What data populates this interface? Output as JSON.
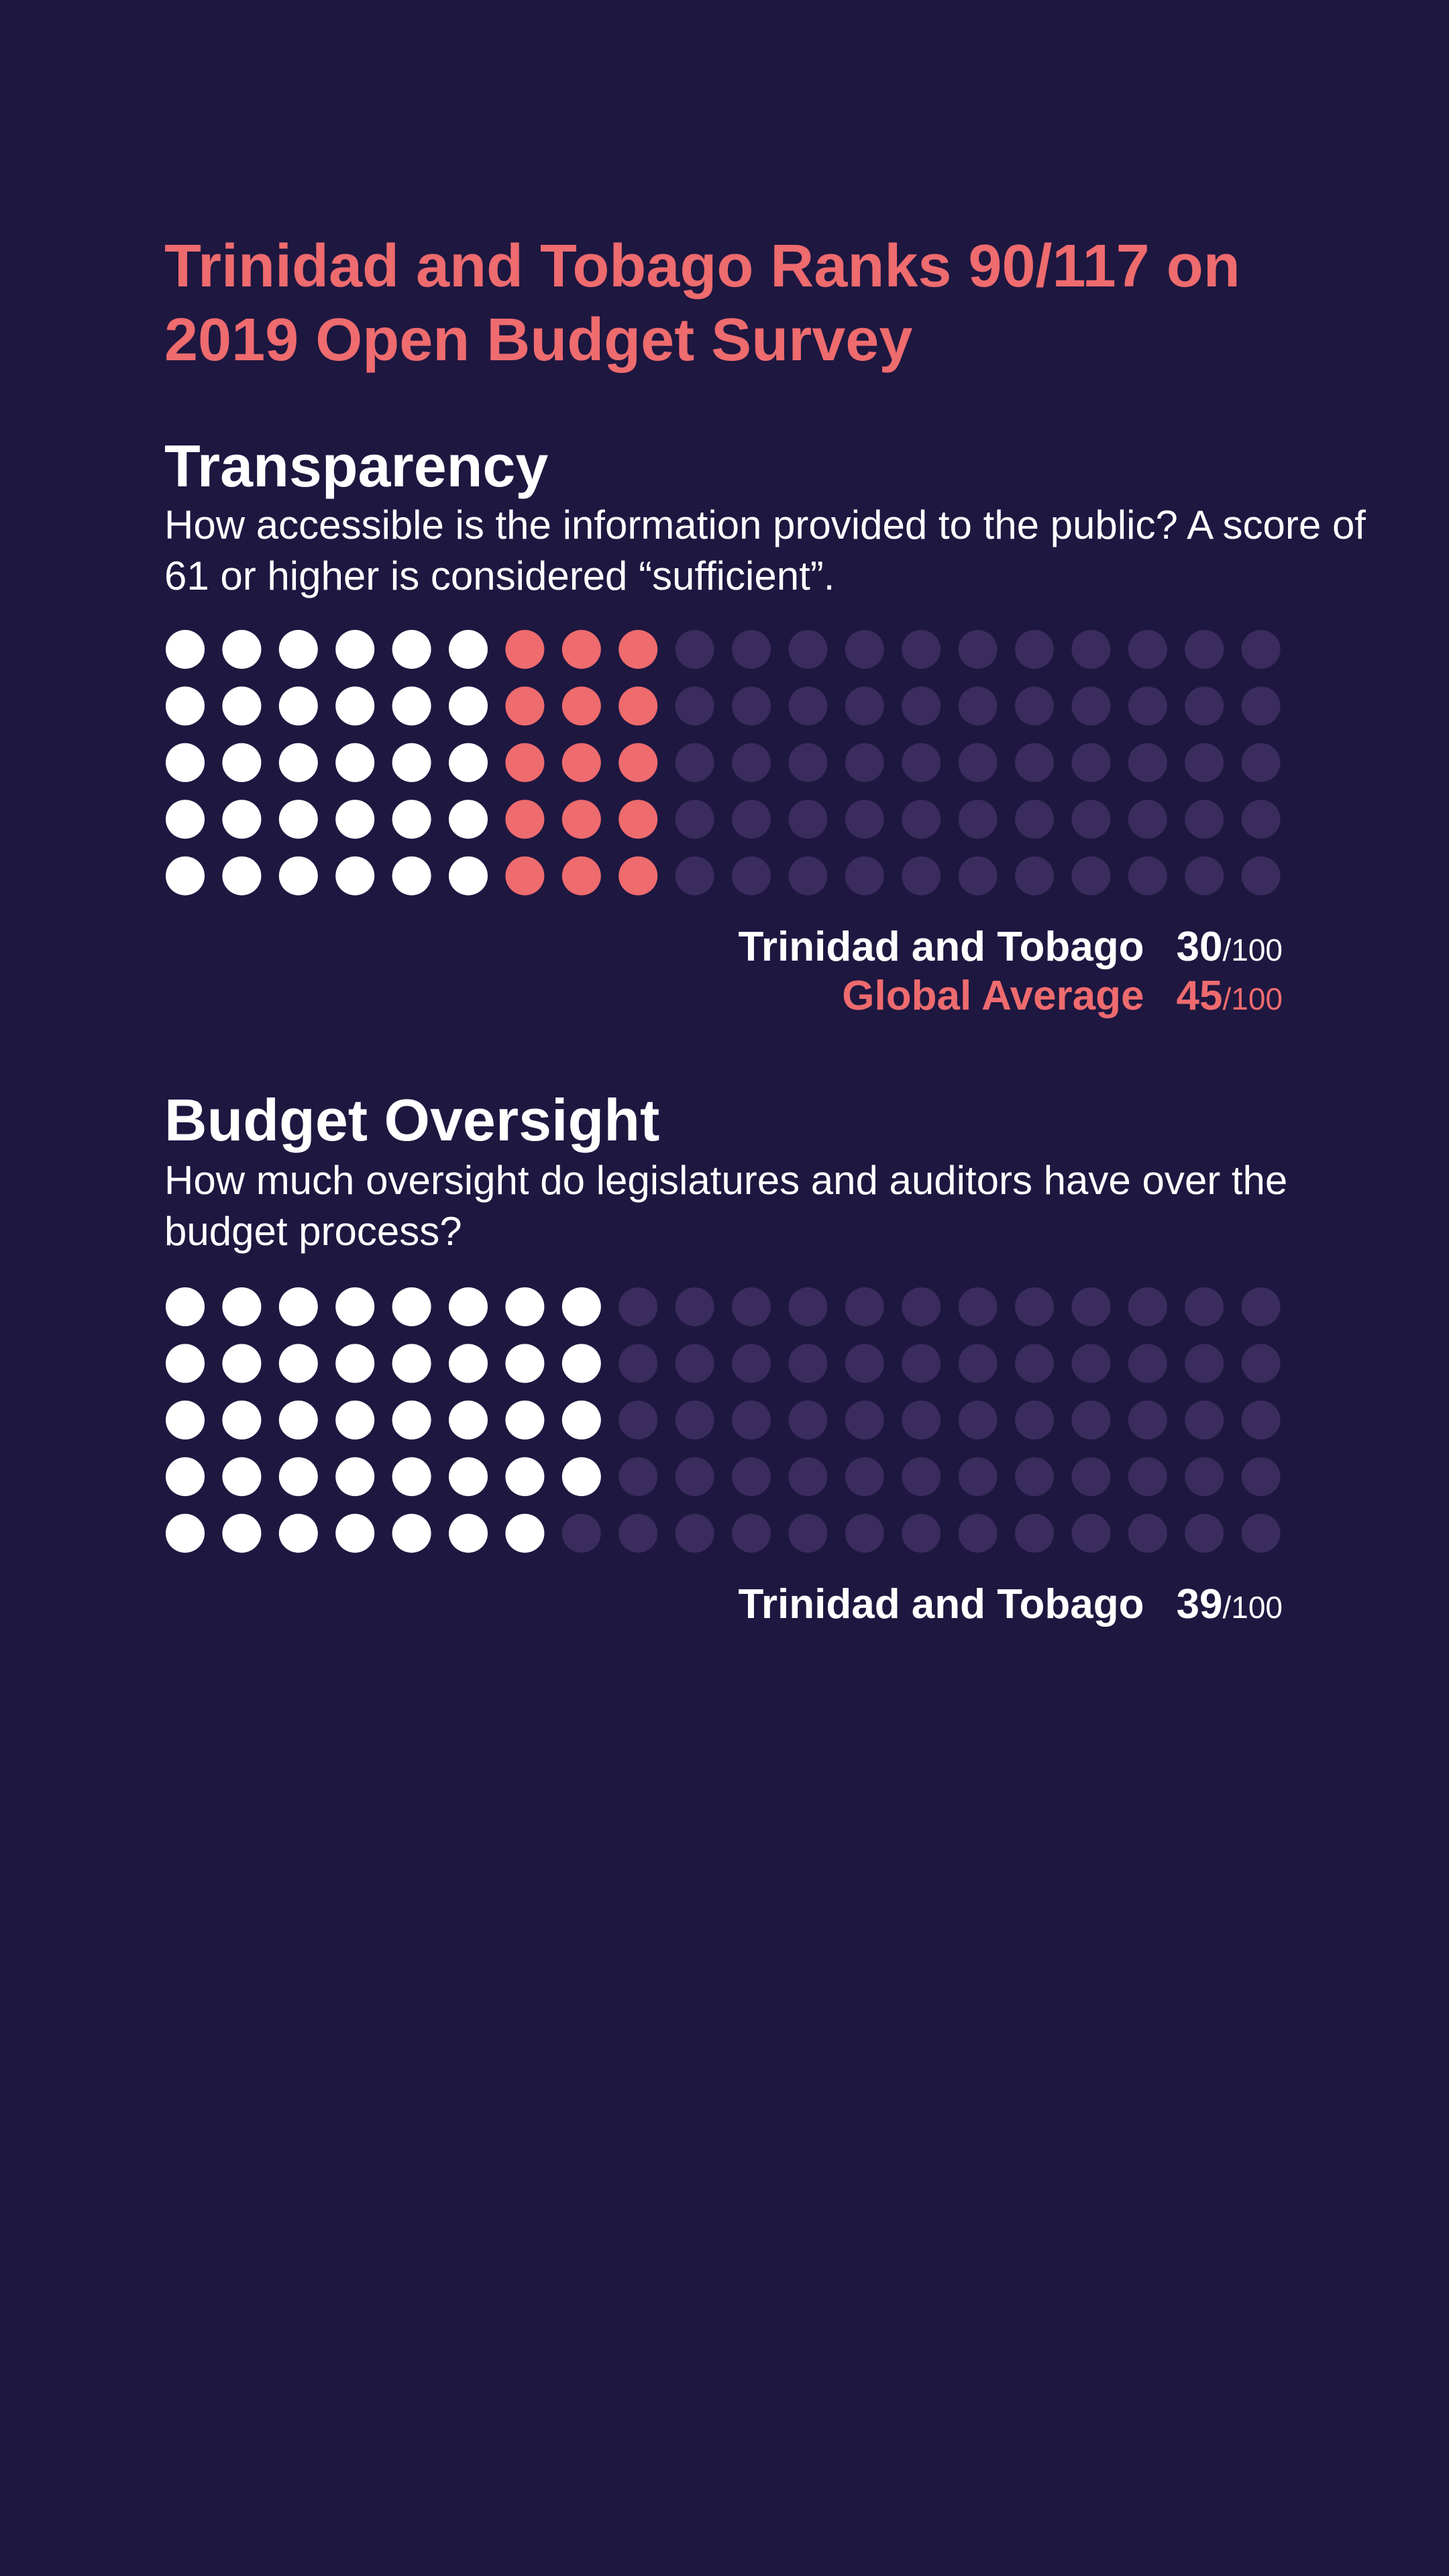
{
  "title": "Trinidad and Tobago Ranks 90/117 on 2019 Open Budget Survey",
  "colors": {
    "background": "#1e1740",
    "accent": "#ee6b6e",
    "dot_filled": "#ffffff",
    "dot_empty": "#3a2c5c"
  },
  "transparency": {
    "heading": "Transparency",
    "description": "How accessible is the information provided to the public? A score of 61 or higher is considered “sufficient”.",
    "country_label": "Trinidad and Tobago",
    "country_score": "30",
    "global_label": "Global Average",
    "global_score": "45",
    "max_label": "/100"
  },
  "oversight": {
    "heading": "Budget Oversight",
    "description": "How much oversight do legislatures and auditors have over the budget process?",
    "country_label": "Trinidad and Tobago",
    "country_score": "39",
    "max_label": "/100"
  },
  "chart_data": [
    {
      "type": "dot-matrix",
      "title": "Transparency",
      "total": 100,
      "series": [
        {
          "name": "Trinidad and Tobago",
          "value": 30
        },
        {
          "name": "Global Average",
          "value": 45
        }
      ]
    },
    {
      "type": "dot-matrix",
      "title": "Budget Oversight",
      "total": 100,
      "series": [
        {
          "name": "Trinidad and Tobago",
          "value": 39
        }
      ]
    }
  ]
}
